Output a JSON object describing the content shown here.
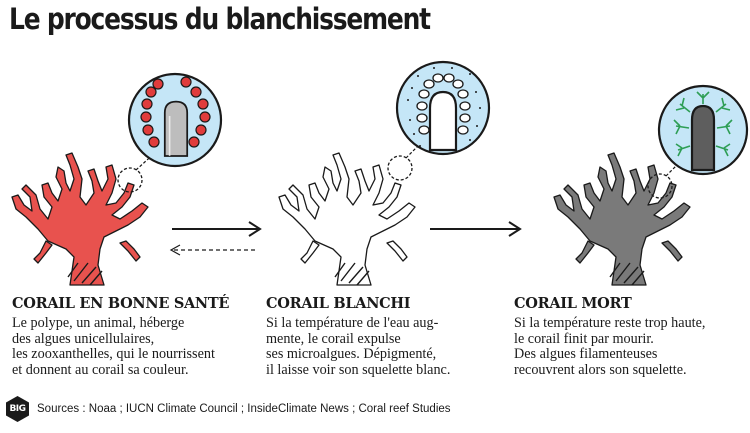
{
  "title": "Le processus du blanchissement",
  "stages": [
    {
      "heading": "CORAIL EN BONNE SANTÉ",
      "text": "Le polype, un animal, héberge\ndes algues unicellulaires,\nles zooxanthelles, qui le nourrissent\net donnent au corail sa couleur.",
      "coral_color": "#e8524e",
      "icon": "healthy-coral-red"
    },
    {
      "heading": "CORAIL BLANCHI",
      "text": "Si la température de l'eau aug-\nmente, le corail expulse\nses microalgues. Dépigmenté,\nil laisse voir son squelette blanc.",
      "coral_color": "#ffffff",
      "icon": "bleached-coral-white"
    },
    {
      "heading": "CORAIL MORT",
      "text": "Si la température reste trop haute,\nle corail finit par mourir.\nDes algues filamenteuses\nrecouvrent alors son squelette.",
      "coral_color": "#7a7a7a",
      "icon": "dead-coral-grey"
    }
  ],
  "logo_text": "BIG",
  "sources": "Sources : Noaa ; IUCN Climate Council ; InsideClimate News ; Coral reef Studies",
  "colors": {
    "circle_bg": "#c5e6f7",
    "zooxanthellae": "#e03c3c",
    "filament_algae": "#2e9e55",
    "polyp": "#bdbdbd",
    "outline": "#1a1a1a"
  }
}
